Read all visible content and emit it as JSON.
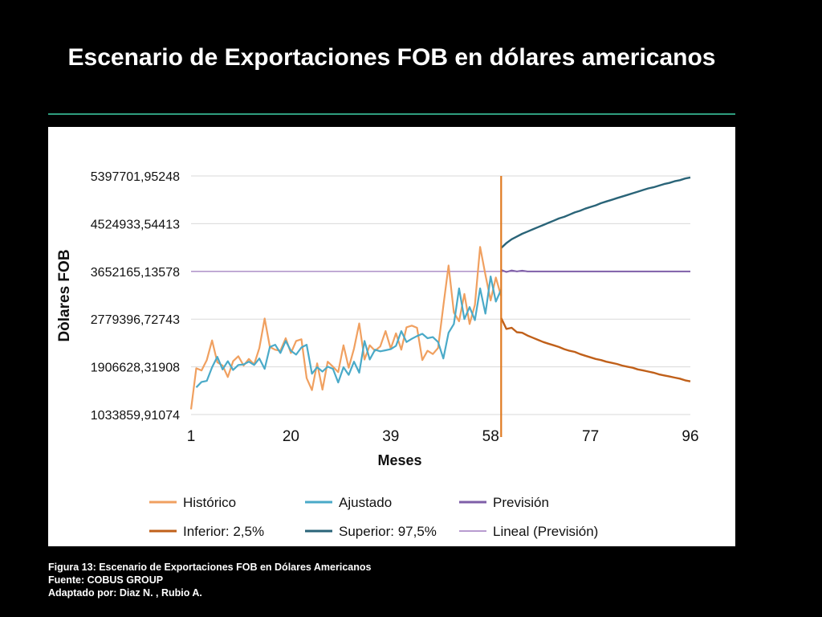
{
  "title": "Escenario de Exportaciones FOB en dólares americanos",
  "caption": {
    "figure": "Figura 13: Escenario de Exportaciones FOB en Dólares Americanos",
    "source": "Fuente:  COBUS GROUP",
    "adapted": "Adaptado por: Diaz N. , Rubio  A."
  },
  "colors": {
    "historico": "#f0a060",
    "ajustado": "#4aaac8",
    "prevision": "#7f5fa8",
    "inferior": "#c0601a",
    "superior": "#2a6478",
    "lineal": "#a07cc0",
    "forecast_line": "#e07a20",
    "grid": "#d9d9d9",
    "title_rule": "#2e9e7e"
  },
  "chart_data": {
    "type": "line",
    "title": "",
    "xlabel": "Meses",
    "ylabel": "Dòlares FOB",
    "xlim": [
      1,
      96
    ],
    "ylim": [
      1033859.91074,
      5397701.95248
    ],
    "x_ticks": [
      1,
      20,
      39,
      58,
      77,
      96
    ],
    "y_ticks": [
      1033859.91074,
      1906628.31908,
      2779396.72743,
      3652165.13578,
      4524933.54413,
      5397701.95248
    ],
    "y_tick_labels": [
      "1033859,91074",
      "1906628,31908",
      "2779396,72743",
      "3652165,13578",
      "4524933,54413",
      "5397701,95248"
    ],
    "x_tick_labels": [
      "1",
      "20",
      "39",
      "58",
      "77",
      "96"
    ],
    "grid": true,
    "legend_position": "bottom",
    "forecast_start_x": 60,
    "series": [
      {
        "name": "Histórico",
        "x": [
          1,
          2,
          3,
          4,
          5,
          6,
          7,
          8,
          9,
          10,
          11,
          12,
          13,
          14,
          15,
          16,
          17,
          18,
          19,
          20,
          21,
          22,
          23,
          24,
          25,
          26,
          27,
          28,
          29,
          30,
          31,
          32,
          33,
          34,
          35,
          36,
          37,
          38,
          39,
          40,
          41,
          42,
          43,
          44,
          45,
          46,
          47,
          48,
          49,
          50,
          51,
          52,
          53,
          54,
          55,
          56,
          57,
          58,
          59,
          60
        ],
        "values": [
          1130000,
          1880000,
          1840000,
          2030000,
          2390000,
          1990000,
          1930000,
          1720000,
          2010000,
          2100000,
          1930000,
          2050000,
          1950000,
          2250000,
          2790000,
          2270000,
          2220000,
          2200000,
          2430000,
          2160000,
          2380000,
          2410000,
          1700000,
          1480000,
          1970000,
          1490000,
          2000000,
          1910000,
          1810000,
          2300000,
          1890000,
          2240000,
          2700000,
          2040000,
          2300000,
          2200000,
          2280000,
          2560000,
          2240000,
          2520000,
          2220000,
          2630000,
          2660000,
          2620000,
          2030000,
          2200000,
          2140000,
          2250000,
          3020000,
          3760000,
          2900000,
          2740000,
          3240000,
          2690000,
          3040000,
          4100000,
          3590000,
          3120000,
          3540000,
          3200000
        ]
      },
      {
        "name": "Ajustado",
        "x": [
          2,
          3,
          4,
          5,
          6,
          7,
          8,
          9,
          10,
          11,
          12,
          13,
          14,
          15,
          16,
          17,
          18,
          19,
          20,
          21,
          22,
          23,
          24,
          25,
          26,
          27,
          28,
          29,
          30,
          31,
          32,
          33,
          34,
          35,
          36,
          37,
          38,
          39,
          40,
          41,
          42,
          43,
          44,
          45,
          46,
          47,
          48,
          49,
          50,
          51,
          52,
          53,
          54,
          55,
          56,
          57,
          58,
          59,
          60
        ],
        "values": [
          1530000,
          1630000,
          1650000,
          1900000,
          2090000,
          1860000,
          2010000,
          1850000,
          1940000,
          1950000,
          2000000,
          1940000,
          2060000,
          1870000,
          2270000,
          2310000,
          2160000,
          2380000,
          2200000,
          2130000,
          2260000,
          2310000,
          1780000,
          1900000,
          1820000,
          1910000,
          1870000,
          1620000,
          1900000,
          1760000,
          2000000,
          1800000,
          2380000,
          2040000,
          2220000,
          2190000,
          2210000,
          2230000,
          2290000,
          2560000,
          2360000,
          2420000,
          2470000,
          2510000,
          2430000,
          2450000,
          2360000,
          2060000,
          2530000,
          2690000,
          3340000,
          2780000,
          3000000,
          2760000,
          3340000,
          2880000,
          3560000,
          3100000,
          3320000
        ]
      },
      {
        "name": "Previsión",
        "x": [
          60,
          61,
          62,
          63,
          64,
          65,
          66,
          67,
          68,
          69,
          70,
          71,
          72,
          73,
          74,
          75,
          76,
          77,
          78,
          79,
          80,
          81,
          82,
          83,
          84,
          85,
          86,
          87,
          88,
          89,
          90,
          91,
          92,
          93,
          94,
          95,
          96
        ],
        "values": [
          3680000,
          3640000,
          3670000,
          3650000,
          3665000,
          3650000,
          3650000,
          3650000,
          3650000,
          3650000,
          3650000,
          3650000,
          3650000,
          3650000,
          3650000,
          3650000,
          3650000,
          3650000,
          3650000,
          3650000,
          3650000,
          3650000,
          3650000,
          3650000,
          3650000,
          3650000,
          3650000,
          3650000,
          3650000,
          3650000,
          3650000,
          3650000,
          3650000,
          3650000,
          3650000,
          3650000,
          3650000
        ]
      },
      {
        "name": "Inferior: 2,5%",
        "x": [
          60,
          61,
          62,
          63,
          64,
          65,
          66,
          67,
          68,
          69,
          70,
          71,
          72,
          73,
          74,
          75,
          76,
          77,
          78,
          79,
          80,
          81,
          82,
          83,
          84,
          85,
          86,
          87,
          88,
          89,
          90,
          91,
          92,
          93,
          94,
          95,
          96
        ],
        "values": [
          2800000,
          2600000,
          2620000,
          2540000,
          2530000,
          2480000,
          2440000,
          2400000,
          2360000,
          2330000,
          2300000,
          2270000,
          2230000,
          2200000,
          2180000,
          2140000,
          2110000,
          2080000,
          2050000,
          2030000,
          2000000,
          1980000,
          1960000,
          1930000,
          1910000,
          1890000,
          1860000,
          1840000,
          1820000,
          1800000,
          1770000,
          1750000,
          1730000,
          1710000,
          1690000,
          1660000,
          1640000
        ]
      },
      {
        "name": "Superior: 97,5%",
        "x": [
          60,
          61,
          62,
          63,
          64,
          65,
          66,
          67,
          68,
          69,
          70,
          71,
          72,
          73,
          74,
          75,
          76,
          77,
          78,
          79,
          80,
          81,
          82,
          83,
          84,
          85,
          86,
          87,
          88,
          89,
          90,
          91,
          92,
          93,
          94,
          95,
          96
        ],
        "values": [
          4080000,
          4170000,
          4240000,
          4290000,
          4340000,
          4380000,
          4420000,
          4460000,
          4500000,
          4540000,
          4580000,
          4620000,
          4650000,
          4690000,
          4730000,
          4760000,
          4800000,
          4830000,
          4860000,
          4900000,
          4930000,
          4960000,
          4990000,
          5020000,
          5050000,
          5080000,
          5110000,
          5140000,
          5170000,
          5190000,
          5220000,
          5250000,
          5270000,
          5300000,
          5320000,
          5350000,
          5370000
        ]
      },
      {
        "name": "Lineal (Previsión)",
        "x": [
          1,
          96
        ],
        "values": [
          3650000,
          3650000
        ]
      }
    ]
  }
}
